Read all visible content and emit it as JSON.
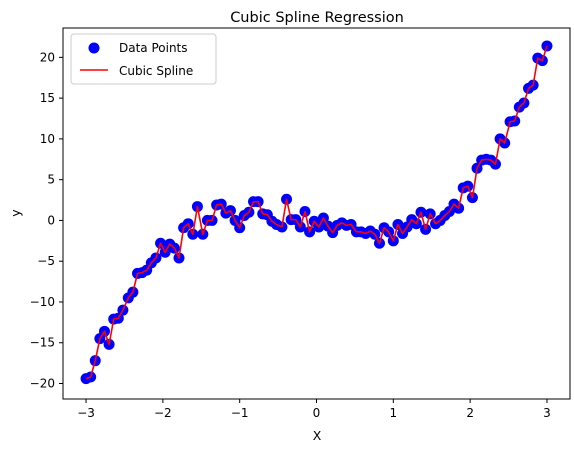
{
  "chart_data": {
    "type": "scatter",
    "title": "Cubic Spline Regression",
    "xlabel": "X",
    "ylabel": "y",
    "xlim": [
      -3.3,
      3.3
    ],
    "ylim": [
      -21.9,
      23.6
    ],
    "xticks": [
      -3,
      -2,
      -1,
      0,
      1,
      2,
      3
    ],
    "yticks": [
      -20,
      -15,
      -10,
      -5,
      0,
      5,
      10,
      15,
      20
    ],
    "xtick_labels": [
      "−3",
      "−2",
      "−1",
      "0",
      "1",
      "2",
      "3"
    ],
    "ytick_labels": [
      "−20",
      "−15",
      "−10",
      "−5",
      "0",
      "5",
      "10",
      "15",
      "20"
    ],
    "grid": false,
    "legend": {
      "placement": "top-left",
      "entries": [
        "Data Points",
        "Cubic Spline"
      ]
    },
    "colors": {
      "points": "#0000ff",
      "line": "#ff0000"
    },
    "series": [
      {
        "name": "Data Points",
        "kind": "scatter",
        "x": [
          -3.0,
          -2.94,
          -2.88,
          -2.82,
          -2.76,
          -2.7,
          -2.64,
          -2.58,
          -2.52,
          -2.45,
          -2.39,
          -2.33,
          -2.27,
          -2.21,
          -2.15,
          -2.09,
          -2.03,
          -1.97,
          -1.91,
          -1.85,
          -1.79,
          -1.73,
          -1.67,
          -1.61,
          -1.55,
          -1.48,
          -1.42,
          -1.36,
          -1.3,
          -1.24,
          -1.18,
          -1.12,
          -1.06,
          -1.0,
          -0.94,
          -0.88,
          -0.82,
          -0.76,
          -0.7,
          -0.64,
          -0.58,
          -0.52,
          -0.45,
          -0.39,
          -0.33,
          -0.27,
          -0.21,
          -0.15,
          -0.09,
          -0.03,
          0.03,
          0.09,
          0.15,
          0.21,
          0.27,
          0.33,
          0.39,
          0.45,
          0.52,
          0.58,
          0.64,
          0.7,
          0.76,
          0.82,
          0.88,
          0.94,
          1.0,
          1.06,
          1.12,
          1.18,
          1.24,
          1.3,
          1.36,
          1.42,
          1.48,
          1.55,
          1.61,
          1.67,
          1.73,
          1.79,
          1.85,
          1.91,
          1.97,
          2.03,
          2.09,
          2.15,
          2.21,
          2.27,
          2.33,
          2.39,
          2.45,
          2.52,
          2.58,
          2.64,
          2.7,
          2.76,
          2.82,
          2.88,
          2.94,
          3.0
        ],
        "y": [
          -19.4,
          -19.2,
          -17.2,
          -14.5,
          -13.6,
          -15.2,
          -12.1,
          -12.0,
          -11.0,
          -9.5,
          -8.8,
          -6.5,
          -6.4,
          -6.1,
          -5.2,
          -4.6,
          -2.8,
          -3.9,
          -2.9,
          -3.4,
          -4.6,
          -0.9,
          -0.4,
          -1.7,
          1.7,
          -1.7,
          0.0,
          0.0,
          1.9,
          2.0,
          0.9,
          1.2,
          0.0,
          -0.9,
          0.6,
          1.0,
          2.3,
          2.3,
          0.8,
          0.7,
          -0.1,
          -0.5,
          -0.8,
          2.6,
          0.1,
          0.1,
          -0.8,
          1.1,
          -1.4,
          -0.1,
          -0.8,
          0.3,
          -0.7,
          -1.5,
          -0.6,
          -0.3,
          -0.6,
          -0.5,
          -1.4,
          -1.4,
          -1.6,
          -1.3,
          -1.7,
          -2.8,
          -0.9,
          -1.4,
          -2.5,
          -0.5,
          -1.6,
          -0.8,
          0.1,
          -0.4,
          1.0,
          -1.1,
          0.8,
          -0.4,
          0.0,
          0.6,
          1.1,
          2.0,
          1.5,
          4.0,
          4.2,
          2.8,
          6.4,
          7.4,
          7.5,
          7.4,
          6.9,
          10.0,
          9.5,
          12.1,
          12.2,
          13.9,
          14.4,
          16.2,
          16.6,
          19.9,
          19.6,
          21.4
        ]
      },
      {
        "name": "Cubic Spline",
        "kind": "line",
        "same_x_as": "Data Points",
        "y": [
          -19.4,
          -19.2,
          -17.2,
          -14.5,
          -13.6,
          -15.2,
          -12.1,
          -12.0,
          -11.0,
          -9.5,
          -8.8,
          -6.5,
          -6.4,
          -6.1,
          -5.2,
          -4.6,
          -2.8,
          -3.9,
          -2.9,
          -3.4,
          -4.6,
          -0.9,
          -0.4,
          -1.7,
          1.7,
          -1.7,
          0.0,
          0.0,
          1.9,
          2.0,
          0.9,
          1.2,
          0.0,
          -0.9,
          0.6,
          1.0,
          2.3,
          2.3,
          0.8,
          0.7,
          -0.1,
          -0.5,
          -0.8,
          2.6,
          0.1,
          0.1,
          -0.8,
          1.1,
          -1.4,
          -0.1,
          -0.8,
          0.3,
          -0.7,
          -1.5,
          -0.6,
          -0.3,
          -0.6,
          -0.5,
          -1.4,
          -1.4,
          -1.6,
          -1.3,
          -1.7,
          -2.8,
          -0.9,
          -1.4,
          -2.5,
          -0.5,
          -1.6,
          -0.8,
          0.1,
          -0.4,
          1.0,
          -1.1,
          0.8,
          -0.4,
          0.0,
          0.6,
          1.1,
          2.0,
          1.5,
          4.0,
          4.2,
          2.8,
          6.4,
          7.4,
          7.5,
          7.4,
          6.9,
          10.0,
          9.5,
          12.1,
          12.2,
          13.9,
          14.4,
          16.2,
          16.6,
          19.9,
          19.6,
          21.4
        ]
      }
    ]
  }
}
